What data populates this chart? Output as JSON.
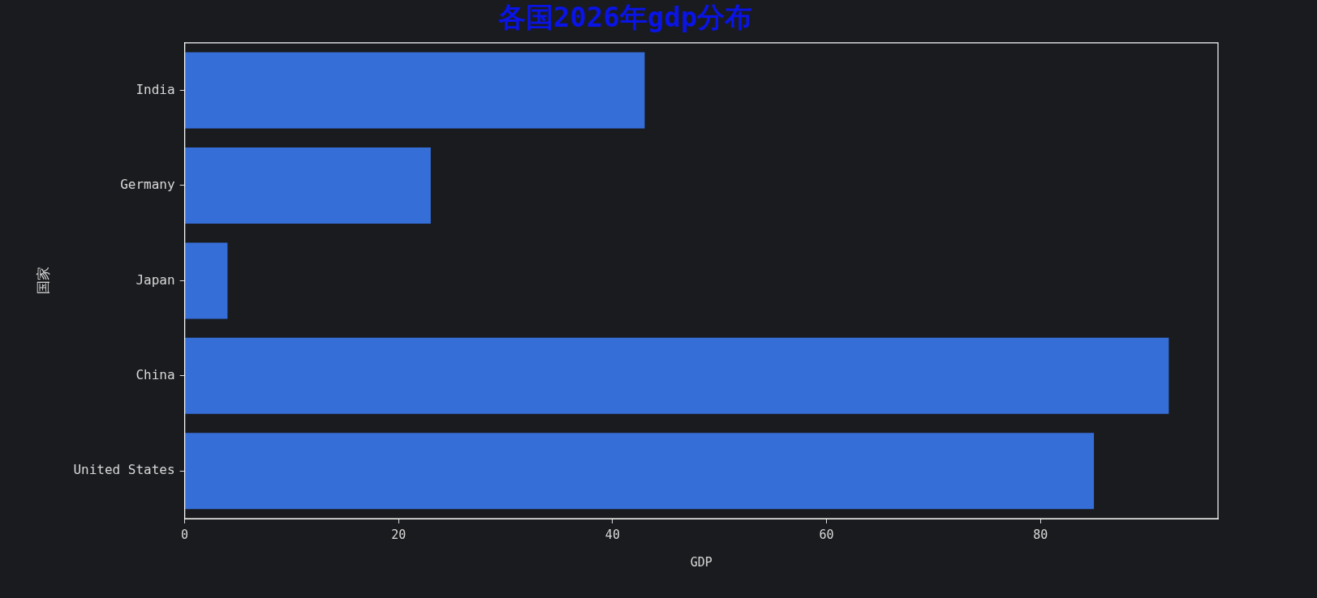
{
  "chart_data": {
    "type": "bar",
    "orientation": "horizontal",
    "title": "各国2026年gdp分布",
    "xlabel": "GDP",
    "ylabel": "国家",
    "categories": [
      "India",
      "Germany",
      "Japan",
      "China",
      "United States"
    ],
    "values": [
      43,
      23,
      4,
      92,
      85
    ],
    "color": "#366ed8",
    "xlim": [
      0,
      96.6
    ],
    "xticks": [
      0,
      20,
      40,
      60,
      80
    ],
    "grid": false
  }
}
